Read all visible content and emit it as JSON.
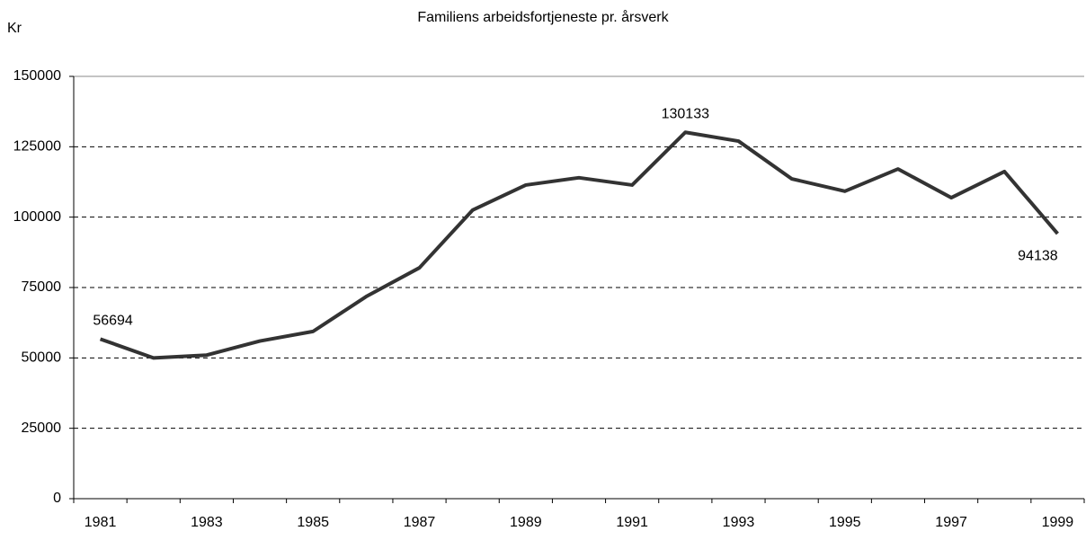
{
  "chart_data": {
    "type": "line",
    "title": "Familiens arbeidsfortjeneste pr. årsverk",
    "y_label": "Kr",
    "categories": [
      "1981",
      null,
      "1983",
      null,
      "1985",
      null,
      "1987",
      null,
      "1989",
      null,
      "1991",
      null,
      "1993",
      null,
      "1995",
      null,
      "1997",
      null,
      "1999"
    ],
    "series": [
      {
        "name": "Familiens arbeidsfortjeneste",
        "color": "#333333",
        "values": [
          56694,
          50000,
          51000,
          56000,
          59400,
          71800,
          82000,
          102500,
          111400,
          114000,
          111400,
          130133,
          127000,
          113600,
          109200,
          117100,
          106900,
          116200,
          94138
        ],
        "value_labels": [
          "56694",
          null,
          null,
          null,
          null,
          null,
          null,
          null,
          null,
          null,
          null,
          "130133",
          null,
          null,
          null,
          null,
          null,
          null,
          "94138"
        ]
      }
    ],
    "ylim": [
      0,
      150000
    ],
    "yticks": [
      0,
      25000,
      50000,
      75000,
      100000,
      125000,
      150000
    ],
    "grid": true
  }
}
